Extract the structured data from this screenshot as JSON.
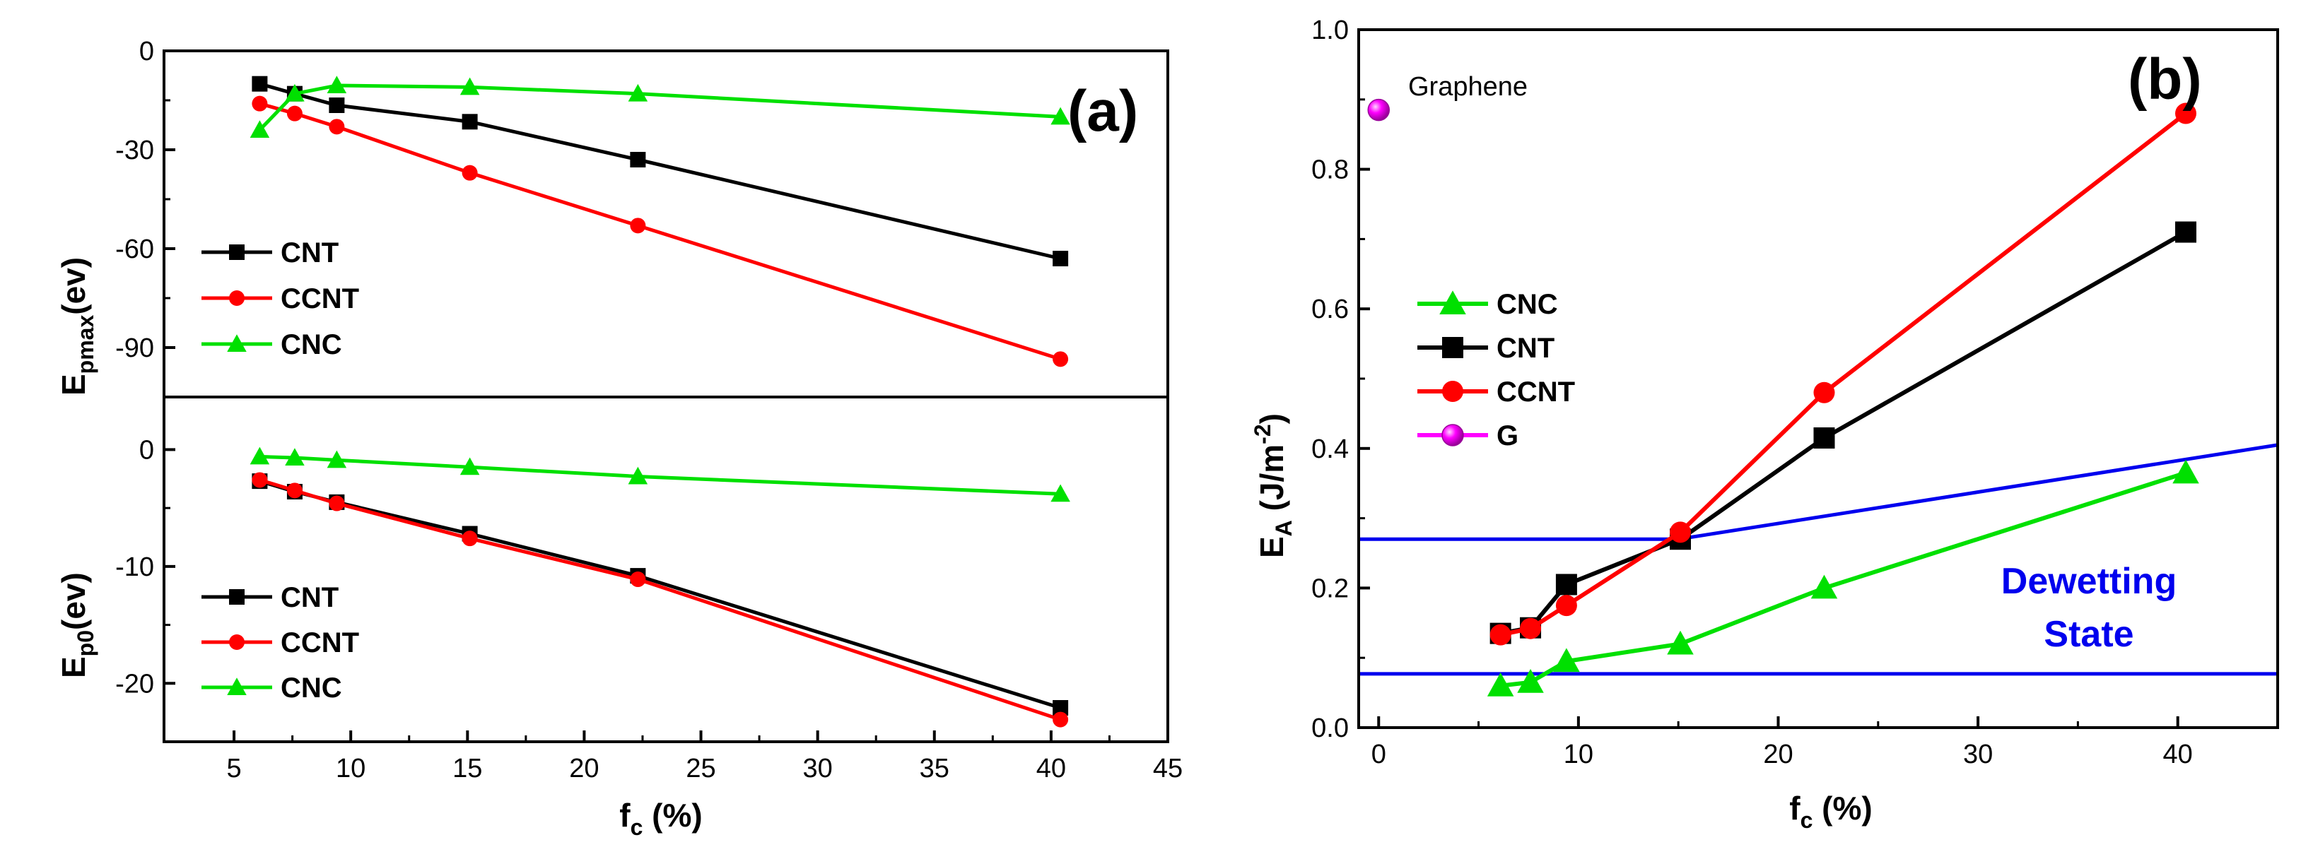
{
  "chart_data": [
    {
      "id": "a_top",
      "type": "line",
      "panel_label": "(a)",
      "ylabel": "E",
      "ylabel_sub": "pmax",
      "ylabel_tail": "(ev)",
      "xlim": [
        2,
        45
      ],
      "ylim": [
        -105,
        0
      ],
      "yticks": [
        0,
        -30,
        -60,
        -90
      ],
      "series": [
        {
          "name": "CNT",
          "color": "#000000",
          "marker": "square",
          "x": [
            6.1,
            7.6,
            9.4,
            15.1,
            22.3,
            40.4
          ],
          "y": [
            -10,
            -13,
            -16.5,
            -21.5,
            -33,
            -63
          ]
        },
        {
          "name": "CCNT",
          "color": "#ff0000",
          "marker": "circle",
          "x": [
            6.1,
            7.6,
            9.4,
            15.1,
            22.3,
            40.4
          ],
          "y": [
            -16,
            -19,
            -23,
            -37,
            -53,
            -93.5
          ]
        },
        {
          "name": "CNC",
          "color": "#00e000",
          "marker": "triangle",
          "x": [
            6.1,
            7.6,
            9.4,
            15.1,
            22.3,
            40.4
          ],
          "y": [
            -24,
            -13,
            -10.5,
            -11,
            -13,
            -20
          ]
        }
      ]
    },
    {
      "id": "a_bottom",
      "type": "line",
      "xlabel": "f",
      "xlabel_sub": "c",
      "xlabel_tail": " (%)",
      "ylabel": "E",
      "ylabel_sub": "p0",
      "ylabel_tail": "(ev)",
      "xlim": [
        2,
        45
      ],
      "xticks": [
        5,
        10,
        15,
        20,
        25,
        30,
        35,
        40,
        45
      ],
      "ylim": [
        -25,
        4.5
      ],
      "yticks": [
        0,
        -10,
        -20
      ],
      "series": [
        {
          "name": "CNT",
          "color": "#000000",
          "marker": "square",
          "x": [
            6.1,
            7.6,
            9.4,
            15.1,
            22.3,
            40.4
          ],
          "y": [
            -2.7,
            -3.6,
            -4.5,
            -7.2,
            -10.8,
            -22.1
          ]
        },
        {
          "name": "CCNT",
          "color": "#ff0000",
          "marker": "circle",
          "x": [
            6.1,
            7.6,
            9.4,
            15.1,
            22.3,
            40.4
          ],
          "y": [
            -2.6,
            -3.5,
            -4.6,
            -7.6,
            -11.1,
            -23.1
          ]
        },
        {
          "name": "CNC",
          "color": "#00e000",
          "marker": "triangle",
          "x": [
            6.1,
            7.6,
            9.4,
            15.1,
            22.3,
            40.4
          ],
          "y": [
            -0.6,
            -0.7,
            -0.9,
            -1.5,
            -2.3,
            -3.8
          ]
        }
      ]
    },
    {
      "id": "b",
      "type": "line",
      "panel_label": "(b)",
      "xlabel": "f",
      "xlabel_sub": "c",
      "xlabel_tail": " (%)",
      "ylabel": "E",
      "ylabel_sub": "A",
      "ylabel_tail": " (J/m",
      "ylabel_sup": "-2",
      "ylabel_close": ")",
      "xlim": [
        -1,
        45
      ],
      "xticks": [
        0,
        10,
        20,
        30,
        40
      ],
      "ylim": [
        0,
        1.0
      ],
      "yticks": [
        0.0,
        0.2,
        0.4,
        0.6,
        0.8,
        1.0
      ],
      "series": [
        {
          "name": "CNC",
          "color": "#00e000",
          "marker": "triangle",
          "x": [
            6.1,
            7.6,
            9.4,
            15.1,
            22.3,
            40.4
          ],
          "y": [
            0.06,
            0.065,
            0.095,
            0.12,
            0.2,
            0.365
          ]
        },
        {
          "name": "CNT",
          "color": "#000000",
          "marker": "square",
          "x": [
            6.1,
            7.6,
            9.4,
            15.1,
            22.3,
            40.4
          ],
          "y": [
            0.135,
            0.143,
            0.205,
            0.27,
            0.415,
            0.71
          ]
        },
        {
          "name": "CCNT",
          "color": "#ff0000",
          "marker": "circle",
          "x": [
            6.1,
            7.6,
            9.4,
            15.1,
            22.3,
            40.4
          ],
          "y": [
            0.133,
            0.142,
            0.175,
            0.28,
            0.48,
            0.88
          ]
        },
        {
          "name": "G",
          "color": "#ff00ff",
          "marker": "sphere",
          "x": [
            0
          ],
          "y": [
            0.885
          ]
        }
      ],
      "reference_lines": [
        {
          "color": "#0000ee",
          "points": [
            [
              -1,
              0.27
            ],
            [
              15,
              0.27
            ],
            [
              45,
              0.405
            ]
          ]
        },
        {
          "color": "#0000ee",
          "points": [
            [
              -1,
              0.077
            ],
            [
              45,
              0.077
            ]
          ]
        }
      ],
      "annotations": {
        "graphene": "Graphene",
        "region_line1": "Dewetting",
        "region_line2": "State"
      }
    }
  ]
}
